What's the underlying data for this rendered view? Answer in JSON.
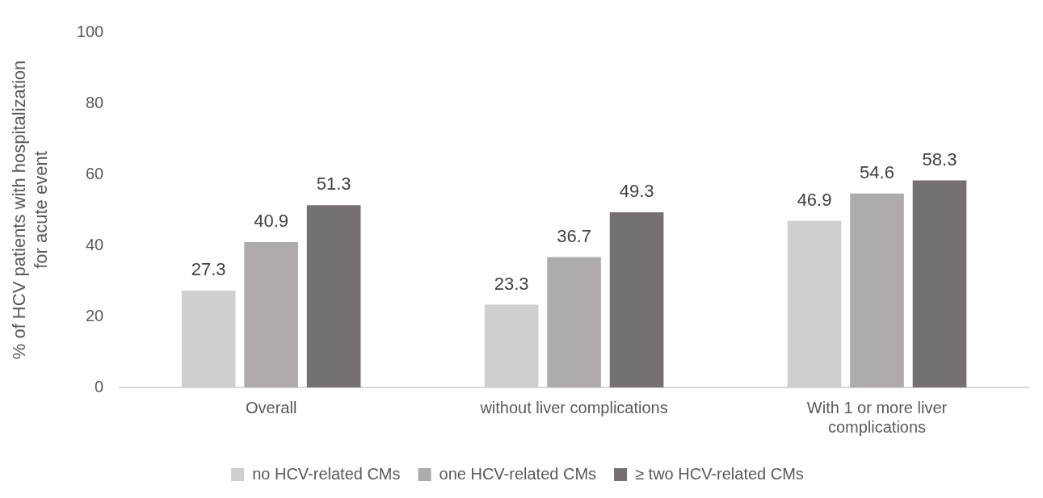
{
  "chart_data": {
    "type": "bar",
    "ylabel": "% of HCV patients with hospitalization for acute event",
    "categories": [
      "Overall",
      "without liver complications",
      "With 1 or more liver complications"
    ],
    "series": [
      {
        "name": "no HCV-related CMs",
        "color": "#d0cece",
        "values": [
          27.3,
          23.3,
          46.9
        ]
      },
      {
        "name": "one HCV-related CMs",
        "color": "#afabab",
        "values": [
          40.9,
          36.7,
          54.6
        ]
      },
      {
        "name": "≥ two HCV-related CMs",
        "color": "#767171",
        "values": [
          51.3,
          49.3,
          58.3
        ]
      }
    ],
    "ylim": [
      0,
      100
    ],
    "yticks": [
      0,
      20,
      40,
      60,
      80,
      100
    ],
    "data_labels": true,
    "grid": false,
    "legend": "bottom"
  }
}
